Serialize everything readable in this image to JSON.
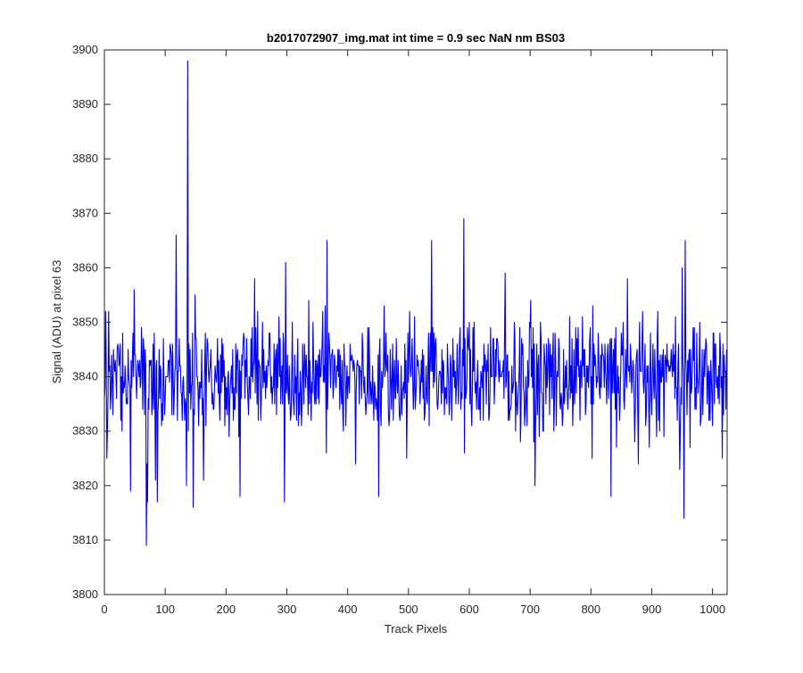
{
  "chart_data": {
    "type": "line",
    "title": "b2017072907_img.mat int time = 0.9 sec  NaN nm BS03",
    "xlabel": "Track Pixels",
    "ylabel": "Signal (ADU) at pixel 63",
    "xlim": [
      0,
      1024
    ],
    "ylim": [
      3800,
      3900
    ],
    "xticks": [
      0,
      100,
      200,
      300,
      400,
      500,
      600,
      700,
      800,
      900,
      1000
    ],
    "yticks": [
      3800,
      3810,
      3820,
      3830,
      3840,
      3850,
      3860,
      3870,
      3880,
      3890,
      3900
    ],
    "grid": false,
    "legend": "none",
    "series": [
      {
        "color": "#0000ff",
        "noise_summary": "dense noisy trace of 1024 samples centered near 3840 ADU (roughly 3828 to 3852), with extreme excursions listed in anchors",
        "anchors": {
          "x": [
            2,
            4,
            7,
            27,
            43,
            49,
            69,
            70,
            71,
            74,
            118,
            135,
            137,
            138,
            146,
            149,
            223,
            296,
            298,
            366,
            413,
            451,
            538,
            591,
            708,
            833,
            860,
            950,
            953,
            955,
            1016
          ],
          "y": [
            3852,
            3825,
            3852,
            3832,
            3819,
            3856,
            3809,
            3824,
            3817,
            3843,
            3866,
            3820,
            3898,
            3830,
            3816,
            3855,
            3818,
            3817,
            3861,
            3865,
            3824,
            3818,
            3865,
            3869,
            3820,
            3818,
            3858,
            3860,
            3814,
            3865,
            3825
          ]
        }
      }
    ]
  }
}
